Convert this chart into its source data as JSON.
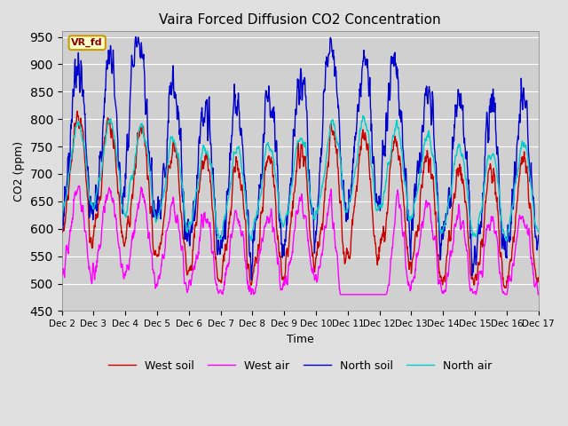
{
  "title": "Vaira Forced Diffusion CO2 Concentration",
  "xlabel": "Time",
  "ylabel": "CO2 (ppm)",
  "ylim": [
    450,
    960
  ],
  "yticks": [
    450,
    500,
    550,
    600,
    650,
    700,
    750,
    800,
    850,
    900,
    950
  ],
  "xtick_labels": [
    "Dec 2",
    "Dec 3",
    "Dec 4",
    "Dec 5",
    "Dec 6",
    "Dec 7",
    "Dec 8",
    "Dec 9",
    "Dec 10",
    "Dec 11",
    "Dec 12",
    "Dec 13",
    "Dec 14",
    "Dec 15",
    "Dec 16",
    "Dec 17"
  ],
  "legend_entries": [
    "West soil",
    "West air",
    "North soil",
    "North air"
  ],
  "colors": {
    "west_soil": "#cc0000",
    "west_air": "#ff00ff",
    "north_soil": "#0000cc",
    "north_air": "#00cccc"
  },
  "background_color": "#e0e0e0",
  "plot_bg_color": "#d0d0d0",
  "annotation_text": "VR_fd",
  "annotation_bg": "#ffffcc",
  "annotation_border": "#cc9900",
  "linewidth": 1.0,
  "n_points": 1440
}
